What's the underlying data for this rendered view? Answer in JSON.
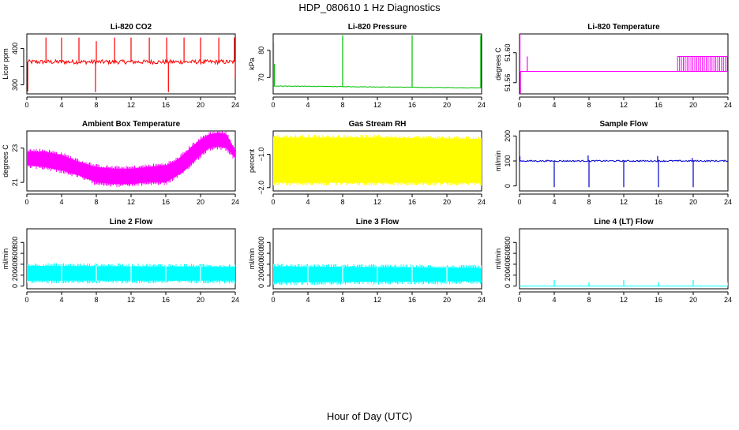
{
  "figure": {
    "title": "HDP_080610  1 Hz Diagnostics",
    "xlabel": "Hour of Day (UTC)"
  },
  "chart_data": [
    {
      "type": "line",
      "title": "Li-820 CO2",
      "ylabel": "Licor ppm",
      "color": "#ff0000",
      "xlim": [
        0,
        24
      ],
      "ylim": [
        275,
        440
      ],
      "xticks": [
        0,
        4,
        8,
        12,
        16,
        20,
        24
      ],
      "yticks": [
        300,
        350,
        400
      ],
      "ytick_labels": [
        "300",
        "",
        "400"
      ],
      "baseline": 363,
      "noise": 6,
      "spikes": [
        {
          "x": 0.1,
          "y": 282
        },
        {
          "x": 2.2,
          "y": 430
        },
        {
          "x": 4.0,
          "y": 430
        },
        {
          "x": 6.0,
          "y": 430
        },
        {
          "x": 7.9,
          "y": 280
        },
        {
          "x": 8.0,
          "y": 420
        },
        {
          "x": 10.1,
          "y": 430
        },
        {
          "x": 12.0,
          "y": 430
        },
        {
          "x": 14.1,
          "y": 430
        },
        {
          "x": 16.1,
          "y": 430
        },
        {
          "x": 16.3,
          "y": 280
        },
        {
          "x": 18.1,
          "y": 430
        },
        {
          "x": 20.0,
          "y": 430
        },
        {
          "x": 22.1,
          "y": 430
        },
        {
          "x": 23.9,
          "y": 430
        },
        {
          "x": 24.0,
          "y": 318
        }
      ]
    },
    {
      "type": "line",
      "title": "Li-820 Pressure",
      "ylabel": "kPa",
      "color": "#00c000",
      "xlim": [
        0,
        24
      ],
      "ylim": [
        64,
        86
      ],
      "xticks": [
        0,
        4,
        8,
        12,
        16,
        20,
        24
      ],
      "yticks": [
        70,
        80
      ],
      "ytick_labels": [
        "70",
        "80"
      ],
      "baseline_start": 66.9,
      "baseline_end": 66.2,
      "noise": 0.1,
      "spikes": [
        {
          "x": 0.05,
          "y": 83
        },
        {
          "x": 0.15,
          "y": 75
        },
        {
          "x": 8.0,
          "y": 85.5
        },
        {
          "x": 16.0,
          "y": 85.5
        },
        {
          "x": 23.9,
          "y": 85.5
        }
      ]
    },
    {
      "type": "line",
      "title": "Li-820 Temperature",
      "ylabel": "degrees C",
      "color": "#ff00ff",
      "xlim": [
        0,
        24
      ],
      "ylim": [
        51.545,
        51.625
      ],
      "xticks": [
        0,
        4,
        8,
        12,
        16,
        20,
        24
      ],
      "yticks": [
        51.56,
        51.6
      ],
      "ytick_labels": [
        "51.56",
        "51.60"
      ],
      "baseline": 51.575,
      "band_start": 18.2,
      "band_high": 51.595,
      "spikes": [
        {
          "x": 0.05,
          "y": 51.625
        },
        {
          "x": 0.1,
          "y": 51.545
        },
        {
          "x": 0.9,
          "y": 51.595
        }
      ]
    },
    {
      "type": "area",
      "title": "Ambient Box Temperature",
      "ylabel": "degrees C",
      "color": "#ff00ff",
      "xlim": [
        0,
        24
      ],
      "ylim": [
        20.5,
        24.0
      ],
      "xticks": [
        0,
        4,
        8,
        12,
        16,
        20,
        24
      ],
      "yticks": [
        21,
        23
      ],
      "ytick_labels": [
        "21",
        "23"
      ],
      "band": {
        "x": [
          0,
          2,
          4,
          6,
          8,
          10,
          12,
          14,
          16,
          17,
          18,
          19,
          20,
          21,
          22,
          23,
          23.5,
          24
        ],
        "upper": [
          22.8,
          22.8,
          22.6,
          22.2,
          21.9,
          21.8,
          21.8,
          21.9,
          22.0,
          22.2,
          22.6,
          23.1,
          23.5,
          23.8,
          23.9,
          23.8,
          23.3,
          22.9
        ],
        "lower": [
          22.0,
          21.9,
          21.7,
          21.4,
          21.0,
          20.9,
          20.9,
          21.0,
          21.0,
          21.3,
          21.6,
          22.1,
          22.6,
          23.0,
          23.1,
          23.0,
          22.7,
          22.4
        ]
      }
    },
    {
      "type": "area",
      "title": "Gas Stream RH",
      "ylabel": "percent",
      "color": "#ffff00",
      "xlim": [
        0,
        24
      ],
      "ylim": [
        -2.1,
        -0.3
      ],
      "xticks": [
        0,
        4,
        8,
        12,
        16,
        20,
        24
      ],
      "yticks": [
        -2.0,
        -1.0
      ],
      "ytick_labels": [
        "−2.0",
        "−1.0"
      ],
      "band": {
        "x": [
          0,
          12,
          24
        ],
        "upper": [
          -0.5,
          -0.5,
          -0.55
        ],
        "lower": [
          -1.85,
          -1.85,
          -1.85
        ]
      }
    },
    {
      "type": "line",
      "title": "Sample Flow",
      "ylabel": "ml/min",
      "color": "#0000cc",
      "xlim": [
        0,
        24
      ],
      "ylim": [
        -20,
        220
      ],
      "xticks": [
        0,
        4,
        8,
        12,
        16,
        20,
        24
      ],
      "yticks": [
        0,
        100,
        200
      ],
      "ytick_labels": [
        "0",
        "100",
        "200"
      ],
      "baseline": 100,
      "noise": 3,
      "spikes": [
        {
          "x": 0.05,
          "y": 118
        },
        {
          "x": 4.0,
          "y": -5
        },
        {
          "x": 7.9,
          "y": 122
        },
        {
          "x": 8.0,
          "y": -5
        },
        {
          "x": 12.0,
          "y": -5
        },
        {
          "x": 15.9,
          "y": 120
        },
        {
          "x": 16.0,
          "y": -5
        },
        {
          "x": 19.9,
          "y": 112
        },
        {
          "x": 20.0,
          "y": -5
        },
        {
          "x": 24.0,
          "y": -5
        }
      ]
    },
    {
      "type": "area",
      "title": "Line 2 Flow",
      "ylabel": "ml/min",
      "color": "#00ffff",
      "xlim": [
        0,
        24
      ],
      "ylim": [
        -50,
        1050
      ],
      "xticks": [
        0,
        4,
        8,
        12,
        16,
        20,
        24
      ],
      "yticks": [
        0,
        200,
        400,
        600,
        800
      ],
      "ytick_labels": [
        "0",
        "200",
        "400",
        "600",
        "800"
      ],
      "band": {
        "x": [
          0,
          24
        ],
        "upper": [
          370,
          350
        ],
        "lower": [
          100,
          100
        ]
      },
      "gaps": [
        4,
        8,
        12,
        16,
        20
      ]
    },
    {
      "type": "area",
      "title": "Line 3 Flow",
      "ylabel": "ml/min",
      "color": "#00ffff",
      "xlim": [
        0,
        24
      ],
      "ylim": [
        -50,
        1050
      ],
      "xticks": [
        0,
        4,
        8,
        12,
        16,
        20,
        24
      ],
      "yticks": [
        0,
        200,
        400,
        600,
        800
      ],
      "ytick_labels": [
        "0",
        "200",
        "400",
        "600",
        "800"
      ],
      "band": {
        "x": [
          0,
          24
        ],
        "upper": [
          360,
          330
        ],
        "lower": [
          70,
          90
        ]
      },
      "gaps": [
        4,
        8,
        12,
        16,
        20
      ]
    },
    {
      "type": "line",
      "title": "Line 4 (LT) Flow",
      "ylabel": "ml/min",
      "color": "#00ffff",
      "xlim": [
        0,
        24
      ],
      "ylim": [
        -50,
        1050
      ],
      "xticks": [
        0,
        4,
        8,
        12,
        16,
        20,
        24
      ],
      "yticks": [
        0,
        200,
        400,
        600,
        800
      ],
      "ytick_labels": [
        "0",
        "200",
        "400",
        "600",
        "800"
      ],
      "baseline": 0,
      "noise": 0,
      "spikes": [
        {
          "x": 4.0,
          "y": 110
        },
        {
          "x": 8.0,
          "y": 70
        },
        {
          "x": 12.0,
          "y": 110
        },
        {
          "x": 16.0,
          "y": 70
        },
        {
          "x": 20.0,
          "y": 110
        },
        {
          "x": 24.0,
          "y": 70
        }
      ]
    }
  ]
}
